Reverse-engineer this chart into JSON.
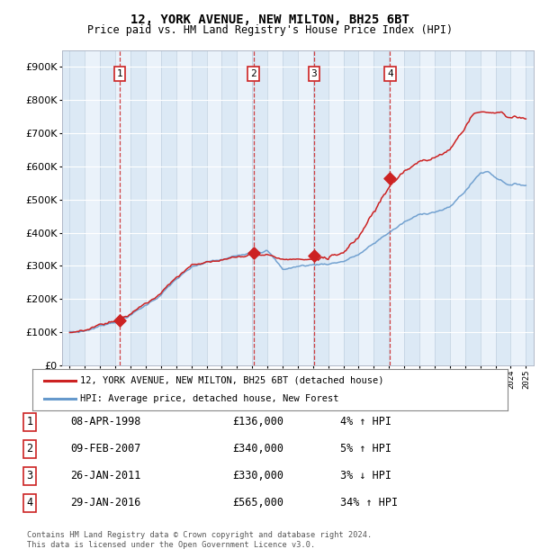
{
  "title": "12, YORK AVENUE, NEW MILTON, BH25 6BT",
  "subtitle": "Price paid vs. HM Land Registry's House Price Index (HPI)",
  "footer": "Contains HM Land Registry data © Crown copyright and database right 2024.\nThis data is licensed under the Open Government Licence v3.0.",
  "legend_line1": "12, YORK AVENUE, NEW MILTON, BH25 6BT (detached house)",
  "legend_line2": "HPI: Average price, detached house, New Forest",
  "table": [
    {
      "num": "1",
      "date": "08-APR-1998",
      "price": "£136,000",
      "change": "4% ↑ HPI"
    },
    {
      "num": "2",
      "date": "09-FEB-2007",
      "price": "£340,000",
      "change": "5% ↑ HPI"
    },
    {
      "num": "3",
      "date": "26-JAN-2011",
      "price": "£330,000",
      "change": "3% ↓ HPI"
    },
    {
      "num": "4",
      "date": "29-JAN-2016",
      "price": "£565,000",
      "change": "34% ↑ HPI"
    }
  ],
  "sale_dates_years": [
    1998.27,
    2007.08,
    2011.07,
    2016.07
  ],
  "sale_prices": [
    136000,
    340000,
    330000,
    565000
  ],
  "vline_dates": [
    1998.27,
    2007.08,
    2011.07,
    2016.07
  ],
  "ylim": [
    0,
    950000
  ],
  "xlim_start": 1994.5,
  "xlim_end": 2025.5,
  "background_color": "#dce9f5",
  "alt_background_color": "#e8f0f8",
  "grid_color": "#c8d8e8",
  "white_grid": "#ffffff",
  "red_color": "#cc2222",
  "blue_color": "#6699cc"
}
